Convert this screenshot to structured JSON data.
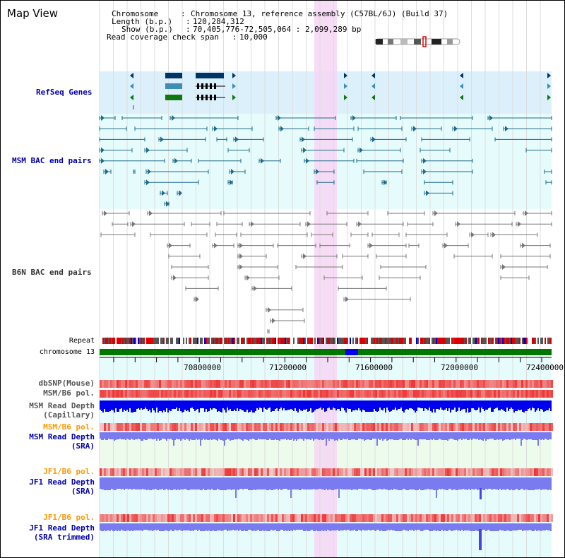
{
  "title": "Map View",
  "header": {
    "chromosome_label": "Chromosome",
    "chromosome_value": "Chromosome 13, reference assembly (C57BL/6J) (Build 37)",
    "length_label": "Length (b.p.)",
    "length_value": "120,284,312",
    "show_label": "Show (b.p.)",
    "show_value": "70,405,776-72,505,064 : 2,099,289 bp",
    "coverage_label": "Read coverage check span",
    "coverage_value": "10,000"
  },
  "ruler": {
    "ticks": [
      "70800000",
      "71200000",
      "71600000",
      "72000000",
      "72400000"
    ],
    "chromosome_label": "chromosome 13",
    "repeat_label": "Repeat"
  },
  "tracks": {
    "refseq": "RefSeq Genes",
    "msm_bac": "MSM BAC end pairs",
    "b6n_bac": "B6N BAC end pairs",
    "dbsnp": "dbSNP(Mouse)",
    "msm_b6_pol_1": "MSM/B6 pol.",
    "msm_depth_cap_1": "MSM Read Depth",
    "msm_depth_cap_2": "(Capillary)",
    "msm_b6_pol_2": "MSM/B6 pol.",
    "msm_depth_sra_1": "MSM Read Depth",
    "msm_depth_sra_2": "(SRA)",
    "jf1_b6_pol_1": "JF1/B6 pol.",
    "jf1_depth_sra_1": "JF1 Read Depth",
    "jf1_depth_sra_2": "(SRA)",
    "jf1_b6_pol_2": "JF1/B6 pol.",
    "jf1_depth_trim_1": "JF1 Read Depth",
    "jf1_depth_trim_2": "(SRA trimmed)"
  },
  "colors": {
    "label_blue": "#0000aa",
    "label_orange": "#ff9900",
    "label_gray": "#333333",
    "highlight": "#f6d6f4",
    "refseq_bg": "#dcf0fb",
    "track_bg": "#e6fbfb",
    "gene_dark": "#003366",
    "gene_mid": "#3d8db5",
    "gene_green": "#117711",
    "msm_line": "#1f6a8a",
    "b6n_line": "#777777",
    "chrom_green": "#007700",
    "chrom_blue": "#0000ee",
    "depth_blue": "#0000ee",
    "depth_light": "#7b7bf0",
    "pol_red": "#ee3333"
  }
}
